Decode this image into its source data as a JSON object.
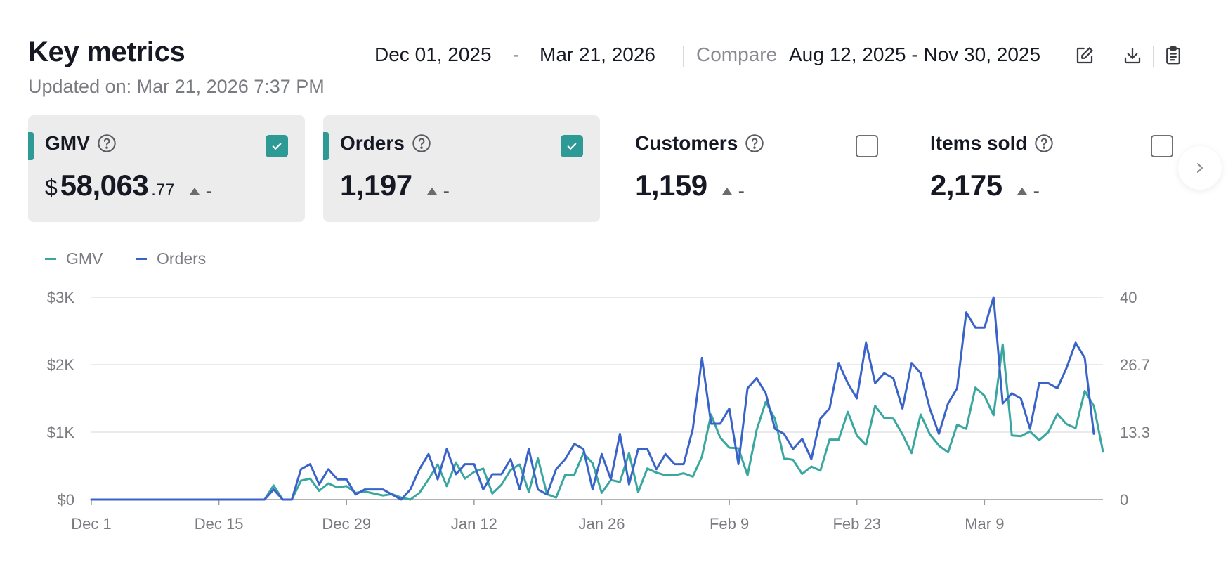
{
  "header": {
    "title": "Key metrics",
    "updated": "Updated on: Mar 21, 2026 7:37 PM",
    "date_start": "Dec 01, 2025",
    "date_dash": "-",
    "date_end": "Mar 21, 2026",
    "compare_label": "Compare",
    "compare_range": "Aug 12, 2025 - Nov 30, 2025",
    "icons": [
      "edit-icon",
      "download-icon",
      "clipboard-icon"
    ]
  },
  "cards": [
    {
      "name": "GMV",
      "currency": "$",
      "value": "58,063",
      "decimal": ".77",
      "trend": "-",
      "checked": true,
      "color": "#2e9a96"
    },
    {
      "name": "Orders",
      "currency": "",
      "value": "1,197",
      "decimal": "",
      "trend": "-",
      "checked": true,
      "color": "#2e9a96"
    },
    {
      "name": "Customers",
      "currency": "",
      "value": "1,159",
      "decimal": "",
      "trend": "-",
      "checked": false,
      "color": ""
    },
    {
      "name": "Items sold",
      "currency": "",
      "value": "2,175",
      "decimal": "",
      "trend": "-",
      "checked": false,
      "color": ""
    }
  ],
  "chart_data": {
    "type": "line",
    "legend": [
      {
        "name": "GMV",
        "color": "#3aa6a0"
      },
      {
        "name": "Orders",
        "color": "#3a63c9"
      }
    ],
    "x_ticks": [
      "Dec 1",
      "Dec 15",
      "Dec 29",
      "Jan 12",
      "Jan 26",
      "Feb 9",
      "Feb 23",
      "Mar 9"
    ],
    "y_left_ticks": [
      "$0",
      "$1K",
      "$2K",
      "$3K"
    ],
    "y_left_range": [
      0,
      3000
    ],
    "y_right_ticks": [
      "0",
      "13.3",
      "26.7",
      "40"
    ],
    "y_right_range": [
      0,
      40
    ],
    "grid": true,
    "x_start": "2025-12-01",
    "series": [
      {
        "name": "GMV",
        "axis": "left",
        "color": "#3aa6a0",
        "values": [
          0,
          0,
          0,
          0,
          0,
          0,
          0,
          0,
          0,
          0,
          0,
          0,
          0,
          0,
          0,
          0,
          0,
          0,
          0,
          0,
          210,
          0,
          0,
          280,
          310,
          130,
          240,
          180,
          200,
          100,
          120,
          90,
          60,
          80,
          30,
          0,
          100,
          300,
          520,
          200,
          550,
          310,
          410,
          460,
          90,
          220,
          440,
          520,
          110,
          610,
          80,
          30,
          370,
          370,
          690,
          540,
          100,
          290,
          260,
          690,
          110,
          460,
          400,
          360,
          360,
          390,
          340,
          640,
          1260,
          920,
          770,
          760,
          360,
          1030,
          1450,
          1200,
          610,
          590,
          380,
          490,
          430,
          890,
          890,
          1300,
          950,
          810,
          1390,
          1210,
          1200,
          970,
          690,
          1260,
          970,
          800,
          700,
          1110,
          1050,
          1660,
          1540,
          1250,
          2300,
          950,
          940,
          1010,
          880,
          1000,
          1270,
          1120,
          1060,
          1610,
          1390,
          710
        ]
      },
      {
        "name": "Orders",
        "axis": "right",
        "color": "#3a63c9",
        "values": [
          0,
          0,
          0,
          0,
          0,
          0,
          0,
          0,
          0,
          0,
          0,
          0,
          0,
          0,
          0,
          0,
          0,
          0,
          0,
          0,
          2,
          0,
          0,
          6,
          7,
          3,
          6,
          4,
          4,
          1,
          2,
          2,
          2,
          1,
          0,
          2,
          6,
          9,
          4,
          10,
          5,
          7,
          7,
          2,
          5,
          5,
          8,
          2,
          10,
          2,
          1,
          6,
          8,
          11,
          10,
          2,
          9,
          4,
          13,
          3,
          10,
          10,
          6,
          9,
          7,
          7,
          14,
          28,
          15,
          15,
          18,
          7,
          22,
          24,
          21,
          14,
          13,
          10,
          12,
          8,
          16,
          18,
          27,
          23,
          20,
          31,
          23,
          25,
          24,
          18,
          27,
          25,
          18,
          13,
          19,
          22,
          37,
          34,
          34,
          40,
          19,
          21,
          20,
          14,
          23,
          23,
          22,
          26,
          31,
          28,
          13
        ]
      }
    ]
  },
  "colors": {
    "accent": "#2e9a96",
    "gmv_line": "#3aa6a0",
    "orders_line": "#3a63c9"
  }
}
